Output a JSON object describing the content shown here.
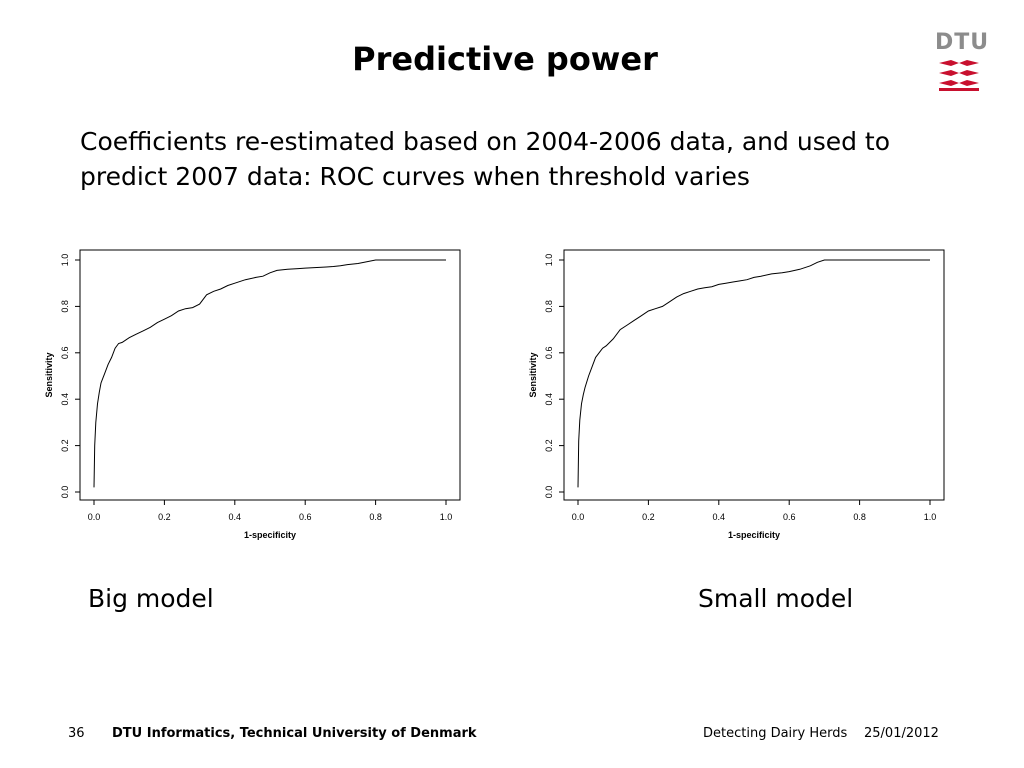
{
  "slide": {
    "title": "Predictive power",
    "intro": "Coefficients re-estimated based on 2004-2006 data, and used to predict 2007 data: ROC curves when threshold varies",
    "logo_text": "DTU",
    "logo_color": "#c8102e"
  },
  "captions": {
    "left": "Big model",
    "right": "Small model"
  },
  "footer": {
    "page_number": "36",
    "organization": "DTU Informatics, Technical University of Denmark",
    "presentation": "Detecting Dairy Herds",
    "date": "25/01/2012"
  },
  "chart_data": [
    {
      "type": "line",
      "name": "roc-big-model",
      "title": "",
      "xlabel": "1-specificity",
      "ylabel": "Sensitivity",
      "xlim": [
        0,
        1
      ],
      "ylim": [
        0,
        1
      ],
      "xticks": [
        "0.0",
        "0.2",
        "0.4",
        "0.6",
        "0.8",
        "1.0"
      ],
      "yticks": [
        "0.0",
        "0.2",
        "0.4",
        "0.6",
        "0.8",
        "1.0"
      ],
      "grid": false,
      "x": [
        0.0,
        0.002,
        0.005,
        0.01,
        0.015,
        0.02,
        0.025,
        0.03,
        0.04,
        0.05,
        0.06,
        0.07,
        0.08,
        0.1,
        0.12,
        0.14,
        0.16,
        0.18,
        0.2,
        0.22,
        0.24,
        0.26,
        0.28,
        0.3,
        0.32,
        0.34,
        0.36,
        0.38,
        0.4,
        0.43,
        0.46,
        0.48,
        0.5,
        0.52,
        0.55,
        0.58,
        0.6,
        0.62,
        0.64,
        0.66,
        0.68,
        0.7,
        0.72,
        0.75,
        0.8,
        0.85,
        0.9,
        0.95,
        1.0
      ],
      "y": [
        0.02,
        0.2,
        0.3,
        0.38,
        0.43,
        0.47,
        0.49,
        0.51,
        0.55,
        0.58,
        0.62,
        0.64,
        0.645,
        0.665,
        0.68,
        0.695,
        0.71,
        0.73,
        0.745,
        0.76,
        0.78,
        0.79,
        0.795,
        0.81,
        0.85,
        0.865,
        0.875,
        0.89,
        0.9,
        0.915,
        0.925,
        0.93,
        0.945,
        0.955,
        0.96,
        0.963,
        0.965,
        0.967,
        0.968,
        0.97,
        0.972,
        0.975,
        0.98,
        0.985,
        1.0,
        1.0,
        1.0,
        1.0,
        1.0
      ]
    },
    {
      "type": "line",
      "name": "roc-small-model",
      "title": "",
      "xlabel": "1-specificity",
      "ylabel": "Sensitivity",
      "xlim": [
        0,
        1
      ],
      "ylim": [
        0,
        1
      ],
      "xticks": [
        "0.0",
        "0.2",
        "0.4",
        "0.6",
        "0.8",
        "1.0"
      ],
      "yticks": [
        "0.0",
        "0.2",
        "0.4",
        "0.6",
        "0.8",
        "1.0"
      ],
      "grid": false,
      "x": [
        0.0,
        0.002,
        0.005,
        0.01,
        0.015,
        0.02,
        0.03,
        0.04,
        0.05,
        0.06,
        0.07,
        0.08,
        0.1,
        0.12,
        0.14,
        0.16,
        0.18,
        0.2,
        0.22,
        0.24,
        0.26,
        0.28,
        0.3,
        0.32,
        0.34,
        0.36,
        0.38,
        0.4,
        0.42,
        0.44,
        0.46,
        0.48,
        0.5,
        0.52,
        0.55,
        0.58,
        0.6,
        0.63,
        0.66,
        0.68,
        0.7,
        0.75,
        0.8,
        0.85,
        0.9,
        0.95,
        1.0
      ],
      "y": [
        0.02,
        0.22,
        0.31,
        0.38,
        0.42,
        0.45,
        0.5,
        0.54,
        0.58,
        0.6,
        0.62,
        0.63,
        0.66,
        0.7,
        0.72,
        0.74,
        0.76,
        0.78,
        0.79,
        0.8,
        0.82,
        0.84,
        0.855,
        0.865,
        0.875,
        0.88,
        0.885,
        0.895,
        0.9,
        0.905,
        0.91,
        0.915,
        0.925,
        0.93,
        0.94,
        0.945,
        0.95,
        0.96,
        0.975,
        0.99,
        1.0,
        1.0,
        1.0,
        1.0,
        1.0,
        1.0,
        1.0
      ]
    }
  ]
}
